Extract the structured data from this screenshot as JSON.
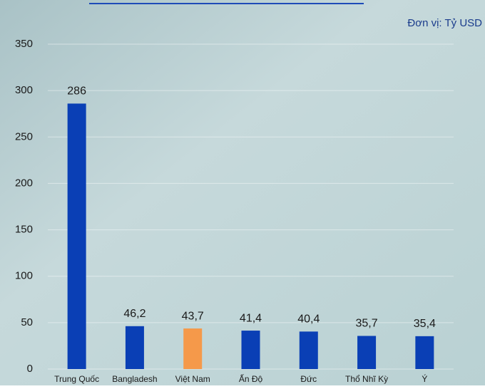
{
  "chart_data": {
    "type": "bar",
    "unit": "Đơn vị: Tỷ USD",
    "categories": [
      "Trung Quốc",
      "Bangladesh",
      "Việt Nam",
      "Ấn Độ",
      "Đức",
      "Thổ Nhĩ Kỳ",
      "Ý"
    ],
    "values": [
      286,
      46.2,
      43.7,
      41.4,
      40.4,
      35.7,
      35.4
    ],
    "value_labels": [
      "286",
      "46,2",
      "43,7",
      "41,4",
      "40,4",
      "35,7",
      "35,4"
    ],
    "colors": [
      "#0a3fb5",
      "#0a3fb5",
      "#f5994a",
      "#0a3fb5",
      "#0a3fb5",
      "#0a3fb5",
      "#0a3fb5"
    ],
    "ylim": [
      0,
      350
    ],
    "yticks": [
      0,
      50,
      100,
      150,
      200,
      250,
      300,
      350
    ],
    "grid": true
  }
}
